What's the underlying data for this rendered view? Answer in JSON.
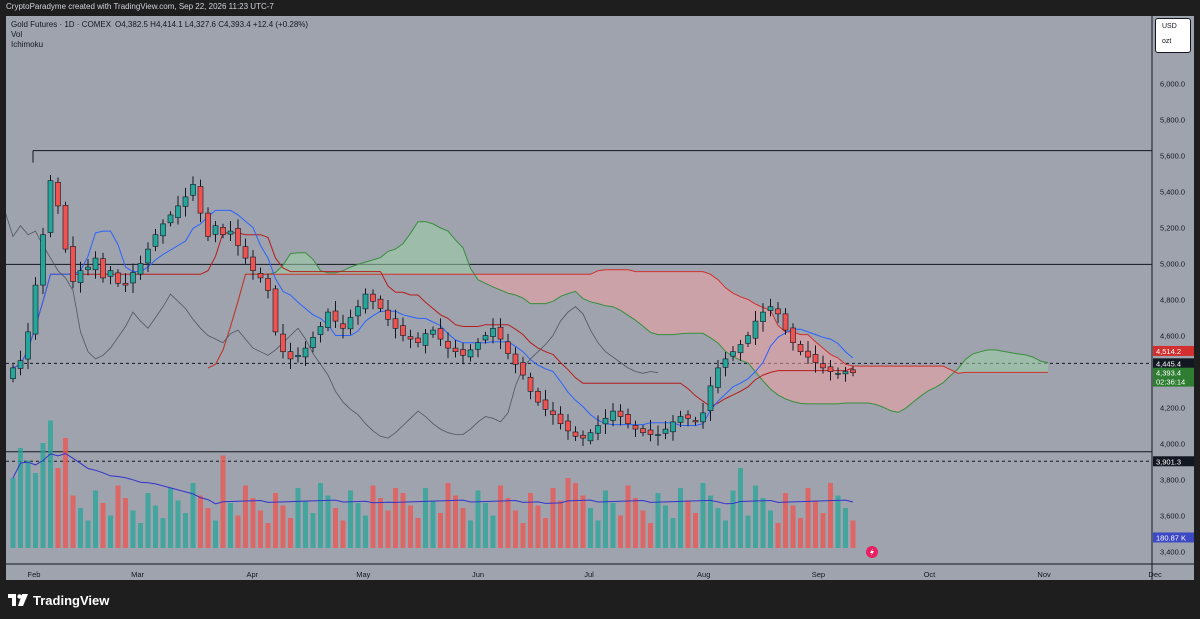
{
  "header": {
    "credit": "CryptoParadyme created with TradingView.com, Sep 22, 2026 11:23 UTC-7"
  },
  "legend": {
    "symbol": "Gold Futures · 1D · COMEX",
    "ohlc": "O4,382.5  H4,414.1  L4,327.6  C4,393.4  +12.4 (+0.28%)",
    "indicators": [
      "Vol",
      "Ichimoku"
    ]
  },
  "currency": {
    "unit": "USD",
    "sub": "ozt"
  },
  "footer": {
    "brand": "TradingView"
  },
  "colors": {
    "background": "#9ea3ad",
    "up_candle": "#26a69a",
    "down_candle": "#ef5350",
    "kumo_bull": "#9fd1a8",
    "kumo_bear": "#f0a3a3",
    "conversion_line": "#2962ff",
    "base_line": "#b71c1c",
    "lagging_span": "#505560",
    "span_a": "#388e3c",
    "span_b": "#d32f2f",
    "volume_ma": "#3333cc",
    "horizontal_line": "#131722"
  },
  "chart_data": {
    "type": "candlestick",
    "x": {
      "range": [
        "2026-01-25",
        "2026-12-31"
      ],
      "tick_labels": [
        "Feb",
        "Mar",
        "Apr",
        "May",
        "Jun",
        "Jul",
        "Aug",
        "Sep",
        "Oct",
        "Nov",
        "Dec"
      ]
    },
    "y": {
      "range": [
        3290,
        6080
      ],
      "tick_labels": [
        "6,000.0",
        "5,800.0",
        "5,600.0",
        "5,400.0",
        "5,200.0",
        "5,000.0",
        "4,800.0",
        "4,600.0",
        "4,400.0",
        "4,200.0",
        "4,000.0",
        "3,800.0",
        "3,600.0",
        "3,400.0"
      ],
      "scale": "linear"
    },
    "grid": false,
    "price_labels": [
      {
        "value": "4,514.2",
        "color": "#d32f2f"
      },
      {
        "value": "4,445.4",
        "color": "#131722"
      },
      {
        "value": "4,393.4",
        "color": "#2e7d32"
      },
      {
        "value": "02:36:14",
        "color": "#2e7d32"
      },
      {
        "value": "3,901.3",
        "color": "#131722"
      },
      {
        "value": "180.87 K",
        "color": "#3d48c4"
      }
    ],
    "horizontal_lines": [
      5627,
      4995,
      3954
    ],
    "dashed_lines": [
      4445.4,
      3901.3
    ],
    "close": [
      4420,
      4460,
      4620,
      4880,
      5160,
      5460,
      5320,
      5080,
      4900,
      4960,
      4980,
      5030,
      4920,
      4960,
      4890,
      4880,
      4950,
      5000,
      5080,
      5160,
      5220,
      5270,
      5320,
      5370,
      5440,
      5280,
      5150,
      5210,
      5160,
      5180,
      5100,
      5030,
      4960,
      4920,
      4850,
      4620,
      4510,
      4470,
      4490,
      4530,
      4590,
      4650,
      4730,
      4680,
      4640,
      4700,
      4760,
      4830,
      4790,
      4750,
      4690,
      4640,
      4600,
      4580,
      4560,
      4610,
      4630,
      4580,
      4530,
      4510,
      4490,
      4520,
      4560,
      4600,
      4640,
      4580,
      4500,
      4440,
      4380,
      4290,
      4230,
      4190,
      4160,
      4110,
      4070,
      4040,
      4030,
      4060,
      4100,
      4140,
      4180,
      4150,
      4110,
      4080,
      4060,
      4050,
      4050,
      4080,
      4120,
      4150,
      4140,
      4120,
      4170,
      4320,
      4420,
      4470,
      4510,
      4550,
      4600,
      4680,
      4730,
      4760,
      4720,
      4630,
      4560,
      4510,
      4480,
      4450,
      4420,
      4400,
      4390,
      4400,
      4393.4
    ],
    "volume": {
      "ma_last": "180.87 K"
    }
  }
}
